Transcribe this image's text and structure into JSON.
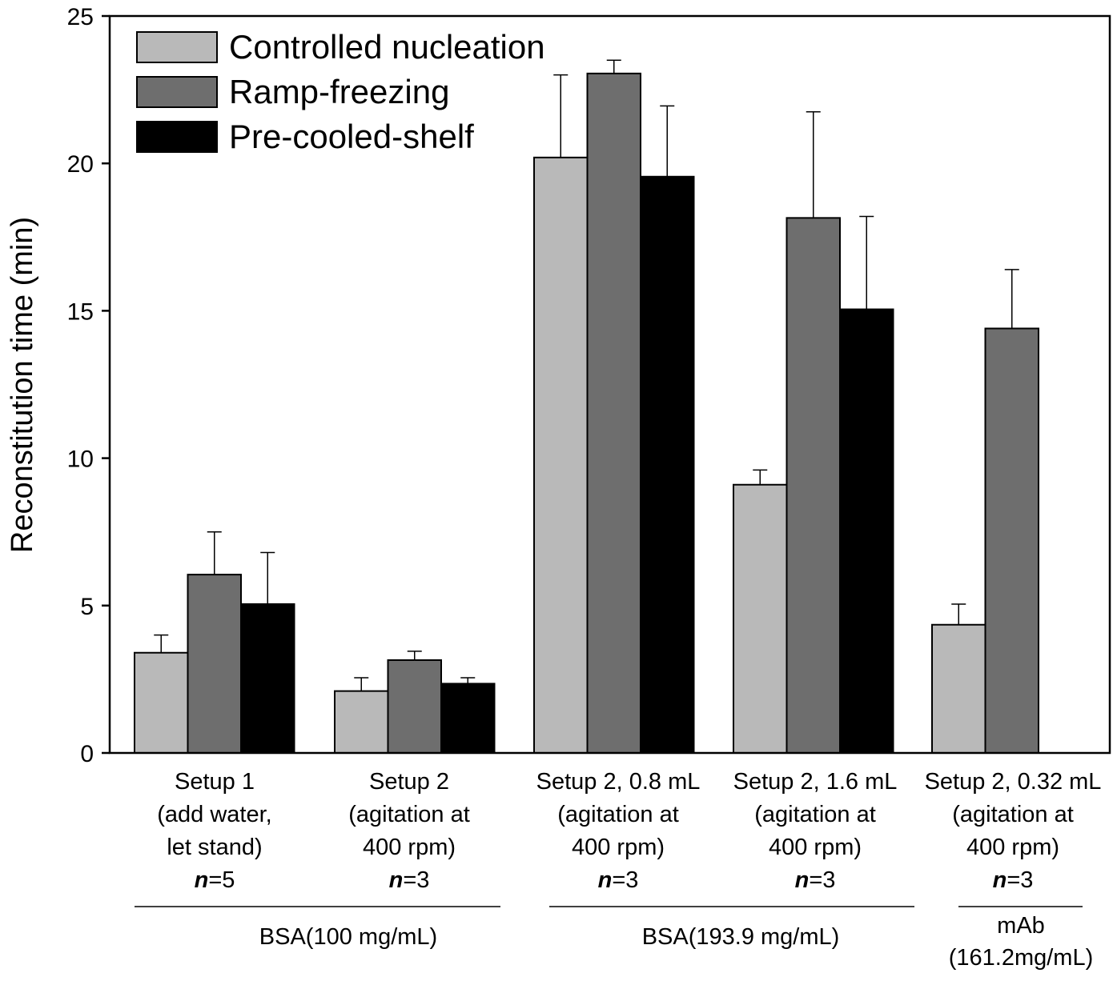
{
  "chart_data": {
    "type": "bar",
    "ylabel": "Reconstitution time (min)",
    "xlabel": "",
    "ylim": [
      0,
      25
    ],
    "yticks": [
      0,
      5,
      10,
      15,
      20,
      25
    ],
    "legend_placement": "top-left",
    "grid": false,
    "categories": [
      {
        "lines": [
          "Setup 1",
          "(add water,",
          "let stand)"
        ],
        "n_prefix": "n",
        "n_value": "=5"
      },
      {
        "lines": [
          "Setup 2",
          "(agitation at",
          "400 rpm)"
        ],
        "n_prefix": "n",
        "n_value": "=3"
      },
      {
        "lines": [
          "Setup 2, 0.8 mL",
          "(agitation at",
          "400 rpm)"
        ],
        "n_prefix": "n",
        "n_value": "=3"
      },
      {
        "lines": [
          "Setup 2, 1.6 mL",
          "(agitation at",
          "400 rpm)"
        ],
        "n_prefix": "n",
        "n_value": "=3"
      },
      {
        "lines": [
          "Setup 2, 0.32 mL",
          "(agitation at",
          "400 rpm)"
        ],
        "n_prefix": "n",
        "n_value": "=3"
      }
    ],
    "series": [
      {
        "name": "Controlled nucleation",
        "color": "#b9b9b9",
        "values": [
          3.4,
          2.1,
          20.2,
          9.1,
          4.35
        ],
        "errors": [
          0.6,
          0.45,
          2.8,
          0.5,
          0.7
        ]
      },
      {
        "name": "Ramp-freezing",
        "color": "#6e6e6e",
        "values": [
          6.05,
          3.15,
          23.05,
          18.15,
          14.4
        ],
        "errors": [
          1.45,
          0.3,
          0.45,
          3.6,
          2.0
        ]
      },
      {
        "name": "Pre-cooled-shelf",
        "color": "#000000",
        "values": [
          5.05,
          2.35,
          19.55,
          15.05,
          null
        ],
        "errors": [
          1.75,
          0.2,
          2.4,
          3.15,
          null
        ]
      }
    ],
    "groups": [
      {
        "lines": [
          "BSA(100 mg/mL)"
        ],
        "categories": [
          0,
          1
        ]
      },
      {
        "lines": [
          "BSA(193.9 mg/mL)"
        ],
        "categories": [
          2,
          3
        ]
      },
      {
        "lines": [
          "mAb",
          "(161.2mg/mL)"
        ],
        "categories": [
          4
        ]
      }
    ]
  }
}
